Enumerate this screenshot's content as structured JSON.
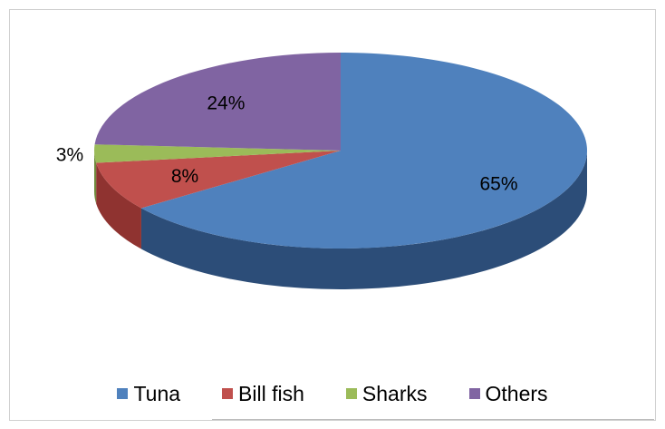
{
  "chart_data": {
    "type": "pie",
    "categories": [
      "Tuna",
      "Bill fish",
      "Sharks",
      "Others"
    ],
    "values": [
      65,
      8,
      3,
      24
    ],
    "data_labels": [
      "65%",
      "8%",
      "3%",
      "24%"
    ],
    "colors": [
      "#4F81BD",
      "#C0504D",
      "#9BBB59",
      "#8064A2"
    ],
    "side_colors": [
      "#2C4D78",
      "#8F3330",
      "#6F8A3C",
      "#5A4275"
    ],
    "legend_position": "bottom",
    "three_d": true
  }
}
